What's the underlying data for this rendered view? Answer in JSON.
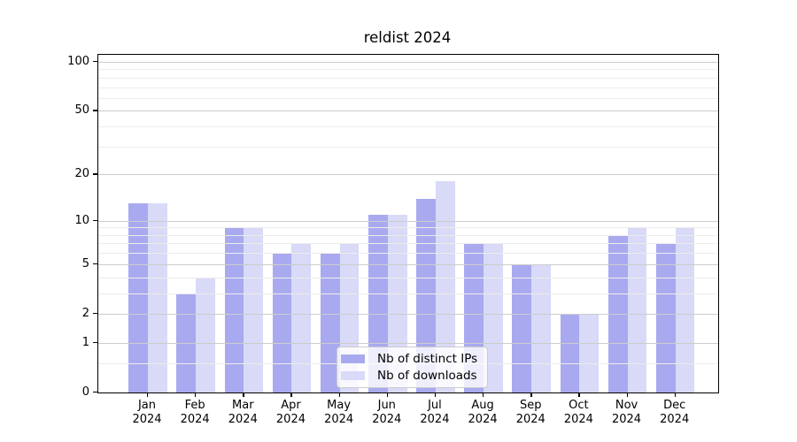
{
  "title": "reldist 2024",
  "chart_data": {
    "type": "bar",
    "title": "reldist 2024",
    "scale": "log10(1 + value)",
    "grid": true,
    "legend_position": "lower center",
    "categories": [
      "Jan 2024",
      "Feb 2024",
      "Mar 2024",
      "Apr 2024",
      "May 2024",
      "Jun 2024",
      "Jul 2024",
      "Aug 2024",
      "Sep 2024",
      "Oct 2024",
      "Nov 2024",
      "Dec 2024"
    ],
    "x_tick_month": [
      "Jan",
      "Feb",
      "Mar",
      "Apr",
      "May",
      "Jun",
      "Jul",
      "Aug",
      "Sep",
      "Oct",
      "Nov",
      "Dec"
    ],
    "x_tick_year": "2024",
    "series": [
      {
        "name": "Nb of distinct IPs",
        "color": "#a9a9f0",
        "values": [
          13,
          3,
          9,
          6,
          6,
          11,
          14,
          7,
          5,
          2,
          8,
          7
        ]
      },
      {
        "name": "Nb of downloads",
        "color": "#d9d9f8",
        "values": [
          13,
          4,
          9,
          7,
          7,
          11,
          18,
          7,
          5,
          2,
          9,
          9
        ]
      }
    ],
    "y_axis": {
      "major_tick_values": [
        0,
        1,
        2,
        5,
        10,
        20,
        50,
        100
      ],
      "major_tick_labels": [
        "0",
        "1",
        "2",
        "5",
        "10",
        "20",
        "50",
        "100"
      ],
      "minor_gridline_values": [
        0.5,
        3,
        4,
        6,
        7,
        8,
        9,
        30,
        40,
        60,
        70,
        80,
        90
      ],
      "ylim": [
        0,
        110.5
      ]
    },
    "colors": {
      "major_grid": "#cccccc",
      "minor_grid": "#ececec",
      "spine": "#000000",
      "background": "#ffffff",
      "text": "#000000"
    }
  }
}
